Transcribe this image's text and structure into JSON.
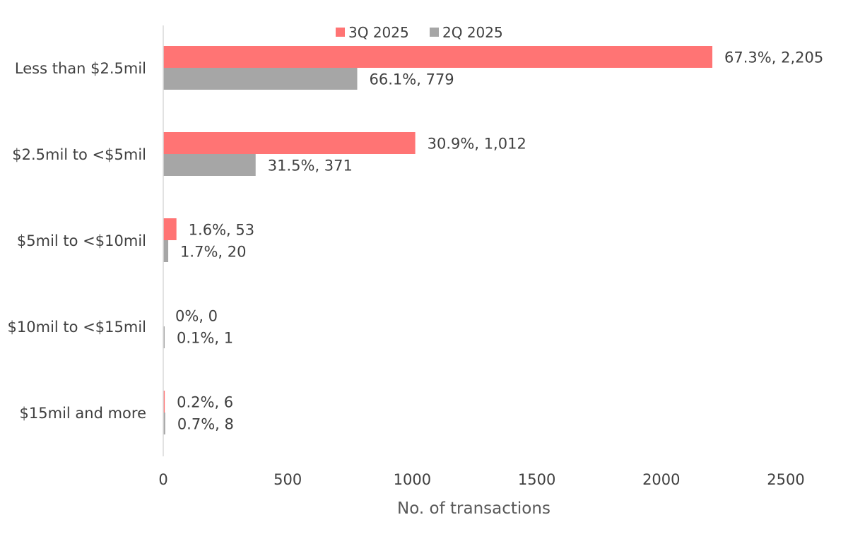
{
  "chart_data": {
    "type": "bar",
    "orientation": "horizontal",
    "categories": [
      "Less than $2.5mil",
      "$2.5mil to <$5mil",
      "$5mil to <$10mil",
      "$10mil to <$15mil",
      "$15mil and more"
    ],
    "series": [
      {
        "name": "3Q 2025",
        "color": "#ff7474",
        "values": [
          2205,
          1012,
          53,
          0,
          6
        ],
        "labels": [
          "67.3%, 2,205",
          "30.9%, 1,012",
          "1.6%, 53",
          "0%, 0",
          "0.2%, 6"
        ]
      },
      {
        "name": "2Q 2025",
        "color": "#a6a6a6",
        "values": [
          779,
          371,
          20,
          1,
          8
        ],
        "labels": [
          "66.1%, 779",
          "31.5%, 371",
          "1.7%, 20",
          "0.1%, 1",
          "0.7%, 8"
        ]
      }
    ],
    "xlabel": "No. of transactions",
    "ylabel": "",
    "xlim": [
      0,
      2500
    ],
    "xticks": [
      "0",
      "500",
      "1000",
      "1500",
      "2000",
      "2500"
    ],
    "grid": false,
    "legend": "top"
  }
}
